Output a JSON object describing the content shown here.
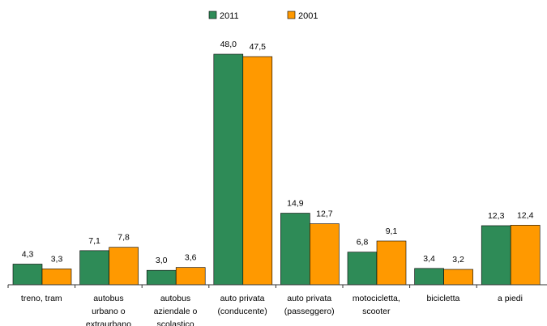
{
  "chart_data": {
    "type": "bar",
    "title": "",
    "xlabel": "",
    "ylabel": "",
    "ylim": [
      0,
      48
    ],
    "grid": false,
    "legend_position": "top-center",
    "categories": [
      [
        "treno, tram"
      ],
      [
        "autobus",
        "urbano o",
        "extraurbano"
      ],
      [
        "autobus",
        "aziendale o",
        "scolastico"
      ],
      [
        "auto privata",
        "(conducente)"
      ],
      [
        "auto privata",
        "(passeggero)"
      ],
      [
        "motocicletta,",
        "scooter"
      ],
      [
        "bicicletta"
      ],
      [
        "a piedi"
      ]
    ],
    "series": [
      {
        "name": "2011",
        "color": "#2e8b57",
        "values": [
          4.3,
          7.1,
          3.0,
          48.0,
          14.9,
          6.8,
          3.4,
          12.3
        ],
        "labels": [
          "4,3",
          "7,1",
          "3,0",
          "48,0",
          "14,9",
          "6,8",
          "3,4",
          "12,3"
        ]
      },
      {
        "name": "2001",
        "color": "#ff9900",
        "values": [
          3.3,
          7.8,
          3.6,
          47.5,
          12.7,
          9.1,
          3.2,
          12.4
        ],
        "labels": [
          "3,3",
          "7,8",
          "3,6",
          "47,5",
          "12,7",
          "9,1",
          "3,2",
          "12,4"
        ]
      }
    ]
  }
}
